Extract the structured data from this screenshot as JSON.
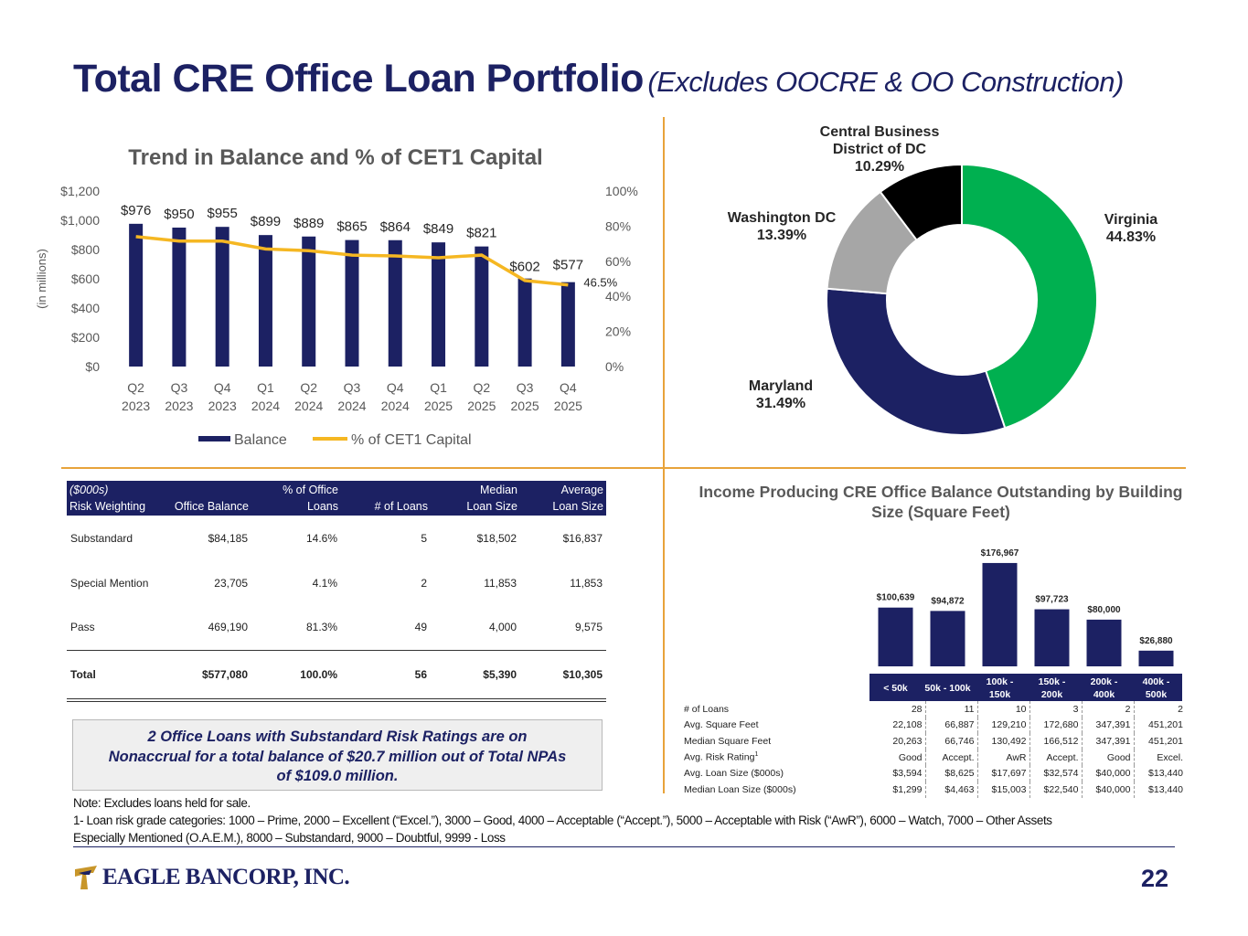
{
  "title": {
    "main": "Total CRE Office Loan Portfolio",
    "sub": "(Excludes OOCRE & OO Construction)"
  },
  "chart_data": [
    {
      "type": "bar",
      "title": "Trend in Balance and % of CET1 Capital",
      "ylabel": "(in millions)",
      "categories": [
        "Q2 2023",
        "Q3 2023",
        "Q4 2023",
        "Q1 2024",
        "Q2 2024",
        "Q3 2024",
        "Q4 2024",
        "Q1 2025",
        "Q2 2025",
        "Q3 2025",
        "Q4 2025"
      ],
      "category_lines": [
        [
          "Q2",
          "2023"
        ],
        [
          "Q3",
          "2023"
        ],
        [
          "Q4",
          "2023"
        ],
        [
          "Q1",
          "2024"
        ],
        [
          "Q2",
          "2024"
        ],
        [
          "Q3",
          "2024"
        ],
        [
          "Q4",
          "2024"
        ],
        [
          "Q1",
          "2025"
        ],
        [
          "Q2",
          "2025"
        ],
        [
          "Q3",
          "2025"
        ],
        [
          "Q4",
          "2025"
        ]
      ],
      "series": [
        {
          "name": "Balance",
          "type": "bar",
          "values": [
            976,
            950,
            955,
            899,
            889,
            865,
            864,
            849,
            821,
            602,
            577
          ],
          "labels": [
            "$976",
            "$950",
            "$955",
            "$899",
            "$889",
            "$865",
            "$864",
            "$849",
            "$821",
            "$602",
            "$577"
          ],
          "color": "#1c2163"
        },
        {
          "name": "% of CET1 Capital",
          "type": "line",
          "axis": "right",
          "values": [
            74,
            71.5,
            71.5,
            67,
            66,
            63.5,
            63,
            62,
            63.5,
            49,
            46.5
          ],
          "color": "#f5b722"
        }
      ],
      "y_ticks": [
        "$0",
        "$200",
        "$400",
        "$600",
        "$800",
        "$1,000",
        "$1,200"
      ],
      "y_tick_values": [
        0,
        200,
        400,
        600,
        800,
        1000,
        1200
      ],
      "y2_ticks": [
        "0%",
        "20%",
        "40%",
        "60%",
        "80%",
        "100%"
      ],
      "y2_tick_values": [
        0,
        20,
        40,
        60,
        80,
        100
      ],
      "ylim": [
        0,
        1200
      ],
      "y2lim": [
        0,
        100
      ],
      "annotation": "46.5%",
      "legend": [
        "Balance",
        "% of CET1 Capital"
      ]
    },
    {
      "type": "pie",
      "title": "",
      "slices": [
        {
          "name": "Virginia",
          "pct_label": "44.83%",
          "value": 44.83,
          "color": "#00b050"
        },
        {
          "name": "Maryland",
          "pct_label": "31.49%",
          "value": 31.49,
          "color": "#1c2163"
        },
        {
          "name": "Washington DC",
          "pct_label": "13.39%",
          "value": 13.39,
          "color": "#a6a6a6"
        },
        {
          "name": "Central Business District of DC",
          "name_lines": [
            "Central Business",
            "District of DC"
          ],
          "pct_label": "10.29%",
          "value": 10.29,
          "color": "#000000"
        }
      ]
    },
    {
      "type": "bar",
      "title": "Income Producing CRE Office Balance Outstanding by Building Size (Square Feet)",
      "title_lines": [
        "Income Producing CRE Office Balance Outstanding by Building",
        "Size (Square Feet)"
      ],
      "categories": [
        "< 50k",
        "50k - 100k",
        "100k - 150k",
        "150k - 200k",
        "200k - 400k",
        "400k - 500k"
      ],
      "category_lines": [
        [
          "< 50k"
        ],
        [
          "50k - 100k"
        ],
        [
          "100k -",
          "150k"
        ],
        [
          "150k -",
          "200k"
        ],
        [
          "200k -",
          "400k"
        ],
        [
          "400k -",
          "500k"
        ]
      ],
      "values": [
        100639,
        94872,
        176967,
        97723,
        80000,
        26880
      ],
      "labels": [
        "$100,639",
        "$94,872",
        "$176,967",
        "$97,723",
        "$80,000",
        "$26,880"
      ],
      "ylim": [
        0,
        180000
      ]
    }
  ],
  "risk_table": {
    "headers": [
      [
        "($000s)",
        "Risk Weighting"
      ],
      [
        "Office Balance"
      ],
      [
        "% of Office",
        "Loans"
      ],
      [
        "# of Loans"
      ],
      [
        "Median",
        "Loan Size"
      ],
      [
        "Average",
        "Loan Size"
      ]
    ],
    "rows": [
      [
        "Substandard",
        "$84,185",
        "14.6%",
        "5",
        "$18,502",
        "$16,837"
      ],
      [
        "Special Mention",
        "23,705",
        "4.1%",
        "2",
        "11,853",
        "11,853"
      ],
      [
        "Pass",
        "469,190",
        "81.3%",
        "49",
        "4,000",
        "9,575"
      ]
    ],
    "total": [
      "Total",
      "$577,080",
      "100.0%",
      "56",
      "$5,390",
      "$10,305"
    ]
  },
  "callout": [
    "2 Office Loans with Substandard Risk Ratings are on",
    "Nonaccrual for a total balance of $20.7 million out of Total NPAs",
    "of $109.0 million."
  ],
  "building_table": {
    "rows": [
      {
        "label": "# of Loans",
        "values": [
          "28",
          "11",
          "10",
          "3",
          "2",
          "2"
        ]
      },
      {
        "label": "Avg. Square Feet",
        "values": [
          "22,108",
          "66,887",
          "129,210",
          "172,680",
          "347,391",
          "451,201"
        ]
      },
      {
        "label": "Median Square Feet",
        "values": [
          "20,263",
          "66,746",
          "130,492",
          "166,512",
          "347,391",
          "451,201"
        ]
      },
      {
        "label": "Avg. Risk Rating",
        "sup": "1",
        "values": [
          "Good",
          "Accept.",
          "AwR",
          "Accept.",
          "Good",
          "Excel."
        ]
      },
      {
        "label": "Avg. Loan Size ($000s)",
        "values": [
          "$3,594",
          "$8,625",
          "$17,697",
          "$32,574",
          "$40,000",
          "$13,440"
        ]
      },
      {
        "label": "Median Loan Size ($000s)",
        "values": [
          "$1,299",
          "$4,463",
          "$15,003",
          "$22,540",
          "$40,000",
          "$13,440"
        ]
      }
    ]
  },
  "notes": [
    "Note: Excludes loans held for sale.",
    "1- Loan risk grade categories: 1000 – Prime, 2000 – Excellent (“Excel.”), 3000 – Good, 4000 – Acceptable (“Accept.”), 5000 – Acceptable with Risk (“AwR”), 6000 – Watch, 7000 – Other Assets",
    "Especially Mentioned (O.A.E.M.), 8000 – Substandard, 9000 – Doubtful, 9999 - Loss"
  ],
  "footer": {
    "logo_text": "EAGLE BANCORP, INC.",
    "page_number": "22"
  },
  "colors": {
    "navy": "#1c2163",
    "gold": "#f5b722",
    "green": "#00b050",
    "divider": "#e8a33b"
  }
}
